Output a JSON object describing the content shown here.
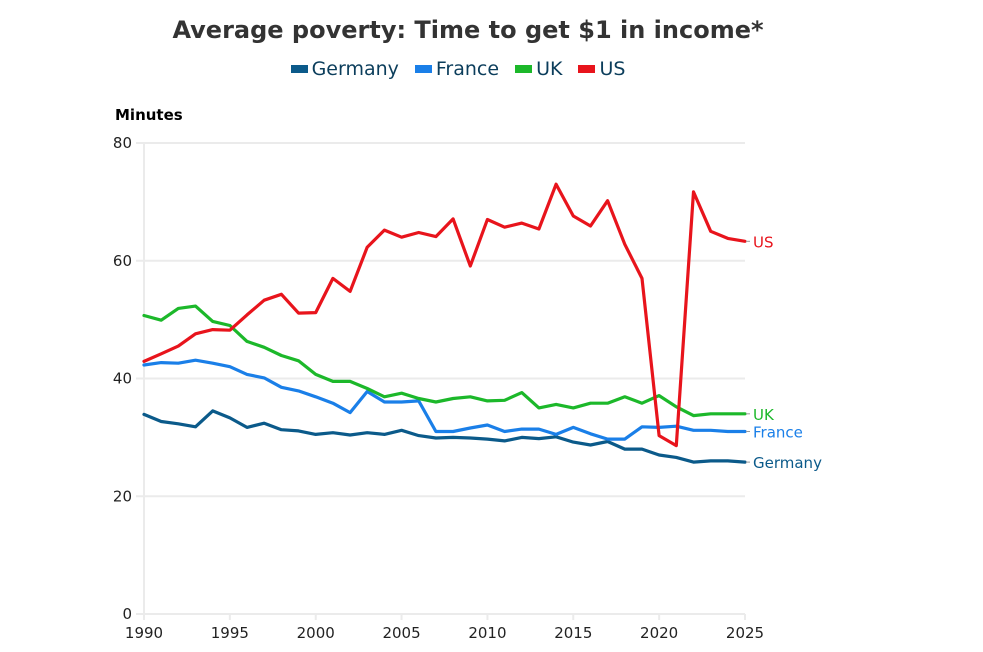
{
  "chart_data": {
    "type": "line",
    "title": "Average poverty: Time to get $1 in income*",
    "xlabel": "",
    "ylabel": "Minutes",
    "xlim": [
      1990,
      2025
    ],
    "ylim": [
      0,
      80
    ],
    "xticks": [
      1990,
      1995,
      2000,
      2005,
      2010,
      2015,
      2020,
      2025
    ],
    "yticks": [
      0,
      20,
      40,
      60,
      80
    ],
    "grid": "horizontal",
    "legend_position": "top-center",
    "x": [
      1990,
      1991,
      1992,
      1993,
      1994,
      1995,
      1996,
      1997,
      1998,
      1999,
      2000,
      2001,
      2002,
      2003,
      2004,
      2005,
      2006,
      2007,
      2008,
      2009,
      2010,
      2011,
      2012,
      2013,
      2014,
      2015,
      2016,
      2017,
      2018,
      2019,
      2020,
      2021,
      2022,
      2023,
      2024,
      2025
    ],
    "series": [
      {
        "name": "Germany",
        "color": "#0b5a8a",
        "end_label": "Germany",
        "values": [
          33.9,
          32.7,
          32.3,
          31.8,
          34.5,
          33.3,
          31.7,
          32.4,
          31.3,
          31.1,
          30.5,
          30.8,
          30.4,
          30.8,
          30.5,
          31.2,
          30.3,
          29.9,
          30.0,
          29.9,
          29.7,
          29.4,
          30.0,
          29.8,
          30.1,
          29.2,
          28.7,
          29.3,
          28.0,
          28.0,
          27.0,
          26.6,
          25.8,
          26.0,
          26.0,
          25.8
        ]
      },
      {
        "name": "France",
        "color": "#1a7fe8",
        "end_label": "France",
        "values": [
          42.3,
          42.7,
          42.6,
          43.1,
          42.6,
          42.0,
          40.7,
          40.1,
          38.5,
          37.9,
          36.9,
          35.8,
          34.2,
          37.8,
          36.0,
          36.0,
          36.2,
          31.0,
          31.0,
          31.6,
          32.1,
          31.0,
          31.4,
          31.4,
          30.5,
          31.7,
          30.6,
          29.7,
          29.7,
          31.8,
          31.7,
          31.9,
          31.2,
          31.2,
          31.0,
          31.0
        ]
      },
      {
        "name": "UK",
        "color": "#1cb82a",
        "end_label": "UK",
        "values": [
          50.7,
          49.9,
          51.9,
          52.3,
          49.7,
          49.0,
          46.3,
          45.3,
          43.9,
          43.0,
          40.7,
          39.5,
          39.5,
          38.3,
          36.9,
          37.5,
          36.6,
          36.0,
          36.6,
          36.9,
          36.2,
          36.3,
          37.6,
          35.0,
          35.6,
          35.0,
          35.8,
          35.8,
          36.9,
          35.8,
          37.1,
          35.2,
          33.7,
          34.0,
          34.0,
          34.0
        ]
      },
      {
        "name": "US",
        "color": "#e8141c",
        "end_label": "US",
        "values": [
          42.9,
          44.2,
          45.5,
          47.6,
          48.3,
          48.2,
          50.8,
          53.3,
          54.3,
          51.1,
          51.2,
          57.0,
          54.8,
          62.3,
          65.2,
          64.0,
          64.8,
          64.1,
          67.1,
          59.1,
          67.0,
          65.7,
          66.4,
          65.4,
          73.0,
          67.6,
          65.9,
          70.2,
          62.8,
          57.0,
          30.3,
          28.6,
          71.7,
          65.0,
          63.8,
          63.3
        ]
      }
    ]
  }
}
